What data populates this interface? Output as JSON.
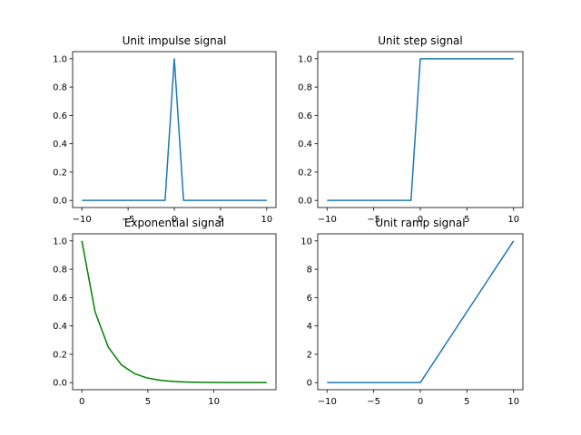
{
  "chart_data": [
    {
      "type": "line",
      "title": "Unit impulse signal",
      "xlim": [
        -11,
        11
      ],
      "ylim": [
        -0.05,
        1.05
      ],
      "xticks": [
        -10,
        -5,
        0,
        5,
        10
      ],
      "xtick_labels": [
        "−10",
        "−5",
        "0",
        "5",
        "10"
      ],
      "yticks": [
        0,
        0.2,
        0.4,
        0.6,
        0.8,
        1
      ],
      "ytick_labels": [
        "0.0",
        "0.2",
        "0.4",
        "0.6",
        "0.8",
        "1.0"
      ],
      "series": [
        {
          "color": "#1f77b4",
          "x": [
            -10,
            -9,
            -8,
            -7,
            -6,
            -5,
            -4,
            -3,
            -2,
            -1,
            0,
            1,
            2,
            3,
            4,
            5,
            6,
            7,
            8,
            9,
            10
          ],
          "y": [
            0,
            0,
            0,
            0,
            0,
            0,
            0,
            0,
            0,
            0,
            1,
            0,
            0,
            0,
            0,
            0,
            0,
            0,
            0,
            0,
            0
          ]
        }
      ]
    },
    {
      "type": "line",
      "title": "Unit step signal",
      "xlim": [
        -11,
        11
      ],
      "ylim": [
        -0.05,
        1.05
      ],
      "xticks": [
        -10,
        -5,
        0,
        5,
        10
      ],
      "xtick_labels": [
        "−10",
        "−5",
        "0",
        "5",
        "10"
      ],
      "yticks": [
        0,
        0.2,
        0.4,
        0.6,
        0.8,
        1
      ],
      "ytick_labels": [
        "0.0",
        "0.2",
        "0.4",
        "0.6",
        "0.8",
        "1.0"
      ],
      "series": [
        {
          "color": "#1f77b4",
          "x": [
            -10,
            -9,
            -8,
            -7,
            -6,
            -5,
            -4,
            -3,
            -2,
            -1,
            0,
            1,
            2,
            3,
            4,
            5,
            6,
            7,
            8,
            9,
            10
          ],
          "y": [
            0,
            0,
            0,
            0,
            0,
            0,
            0,
            0,
            0,
            0,
            1,
            1,
            1,
            1,
            1,
            1,
            1,
            1,
            1,
            1,
            1
          ]
        }
      ]
    },
    {
      "type": "line",
      "title": "Exponential signal",
      "xlim": [
        -0.7,
        14.7
      ],
      "ylim": [
        -0.05,
        1.05
      ],
      "xticks": [
        0,
        5,
        10
      ],
      "xtick_labels": [
        "0",
        "5",
        "10"
      ],
      "yticks": [
        0,
        0.2,
        0.4,
        0.6,
        0.8,
        1
      ],
      "ytick_labels": [
        "0.0",
        "0.2",
        "0.4",
        "0.6",
        "0.8",
        "1.0"
      ],
      "series": [
        {
          "color": "#008000",
          "x": [
            0,
            1,
            2,
            3,
            4,
            5,
            6,
            7,
            8,
            9,
            10,
            11,
            12,
            13,
            14
          ],
          "y": [
            1,
            0.5,
            0.25,
            0.125,
            0.0625,
            0.03125,
            0.015625,
            0.0078125,
            0.0039063,
            0.0019531,
            0.0009766,
            0.0004883,
            0.0002441,
            0.0001221,
            6.1e-05
          ]
        }
      ]
    },
    {
      "type": "line",
      "title": "Unit ramp signal",
      "xlim": [
        -11,
        11
      ],
      "ylim": [
        -0.5,
        10.5
      ],
      "xticks": [
        -10,
        -5,
        0,
        5,
        10
      ],
      "xtick_labels": [
        "−10",
        "−5",
        "0",
        "5",
        "10"
      ],
      "yticks": [
        0,
        2,
        4,
        6,
        8,
        10
      ],
      "ytick_labels": [
        "0",
        "2",
        "4",
        "6",
        "8",
        "10"
      ],
      "series": [
        {
          "color": "#1f77b4",
          "x": [
            -10,
            -9,
            -8,
            -7,
            -6,
            -5,
            -4,
            -3,
            -2,
            -1,
            0,
            1,
            2,
            3,
            4,
            5,
            6,
            7,
            8,
            9,
            10
          ],
          "y": [
            0,
            0,
            0,
            0,
            0,
            0,
            0,
            0,
            0,
            0,
            0,
            1,
            2,
            3,
            4,
            5,
            6,
            7,
            8,
            9,
            10
          ]
        }
      ]
    }
  ]
}
